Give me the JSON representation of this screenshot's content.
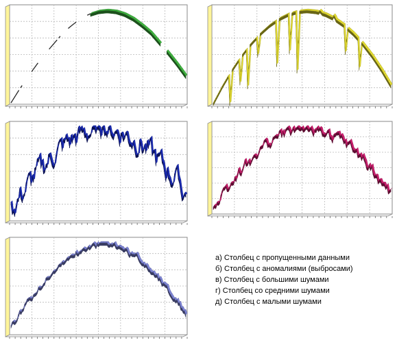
{
  "chart_data": [
    {
      "type": "line",
      "id": "a",
      "style": "gapped-ribbon-3d",
      "color": "#3fb53f",
      "x_range": [
        0,
        1
      ],
      "ylim": [
        0,
        1
      ],
      "grid": true,
      "series": [
        {
          "missing_ranges": [
            [
              0.07,
              0.11
            ],
            [
              0.17,
              0.2
            ],
            [
              0.29,
              0.32
            ],
            [
              0.39,
              0.42
            ],
            [
              0.86,
              0.89
            ]
          ],
          "values": [
            0.0,
            0.15,
            0.29,
            0.42,
            0.54,
            0.65,
            0.76,
            0.84,
            0.91,
            0.96,
            0.99,
            1.0,
            0.99,
            0.96,
            0.91,
            0.84,
            0.76,
            0.65,
            0.54,
            0.42,
            0.29
          ]
        }
      ]
    },
    {
      "type": "line",
      "id": "b",
      "style": "ribbon-3d",
      "color": "#e8e030",
      "x_range": [
        0,
        1
      ],
      "ylim": [
        0,
        1
      ],
      "grid": true,
      "series": [
        {
          "values": [
            0.0,
            0.19,
            0.36,
            0.51,
            0.64,
            0.75,
            0.84,
            0.91,
            0.96,
            0.99,
            1.0,
            0.99,
            0.96,
            0.91,
            0.84,
            0.75,
            0.64,
            0.51,
            0.36,
            0.19
          ],
          "outliers": [
            {
              "x": 0.09,
              "y": 0.0
            },
            {
              "x": 0.15,
              "y": 0.22
            },
            {
              "x": 0.19,
              "y": 0.18
            },
            {
              "x": 0.25,
              "y": 0.52
            },
            {
              "x": 0.36,
              "y": 0.42
            },
            {
              "x": 0.43,
              "y": 0.56
            },
            {
              "x": 0.47,
              "y": 0.35
            },
            {
              "x": 0.6,
              "y": 1.0
            },
            {
              "x": 0.68,
              "y": 0.95
            },
            {
              "x": 0.74,
              "y": 0.55
            },
            {
              "x": 0.82,
              "y": 0.38
            }
          ]
        }
      ]
    },
    {
      "type": "line",
      "id": "v",
      "style": "ribbon-3d",
      "color": "#1a2bb8",
      "noise": 0.14,
      "x_range": [
        0,
        1
      ],
      "ylim": [
        0,
        1
      ],
      "grid": true,
      "series": [
        {
          "values": [
            0.12,
            0.27,
            0.41,
            0.54,
            0.65,
            0.75,
            0.84,
            0.9,
            0.95,
            0.98,
            0.99,
            0.98,
            0.95,
            0.9,
            0.84,
            0.75,
            0.65,
            0.54,
            0.41,
            0.27
          ]
        }
      ]
    },
    {
      "type": "line",
      "id": "g",
      "style": "ribbon-3d",
      "color": "#d01e70",
      "noise": 0.07,
      "x_range": [
        0,
        1
      ],
      "ylim": [
        0,
        1
      ],
      "grid": true,
      "series": [
        {
          "values": [
            0.07,
            0.22,
            0.36,
            0.49,
            0.61,
            0.71,
            0.8,
            0.87,
            0.93,
            0.97,
            0.99,
            0.99,
            0.97,
            0.93,
            0.87,
            0.8,
            0.71,
            0.61,
            0.49,
            0.36,
            0.22
          ]
        }
      ]
    },
    {
      "type": "line",
      "id": "d",
      "style": "ribbon-3d",
      "color": "#7f86da",
      "noise": 0.035,
      "x_range": [
        0,
        1
      ],
      "ylim": [
        0,
        1
      ],
      "grid": true,
      "series": [
        {
          "values": [
            0.07,
            0.22,
            0.36,
            0.49,
            0.61,
            0.71,
            0.8,
            0.87,
            0.93,
            0.97,
            0.99,
            0.99,
            0.97,
            0.93,
            0.87,
            0.8,
            0.71,
            0.61,
            0.49,
            0.36,
            0.22
          ]
        }
      ]
    }
  ],
  "legend": [
    "а) Столбец с пропущенными данными",
    "б) Столбец с аномалиями (выбросами)",
    "в) Столбец с большими шумами",
    "г) Столбец со средними шумами",
    "д) Столбец с малыми шумами"
  ]
}
